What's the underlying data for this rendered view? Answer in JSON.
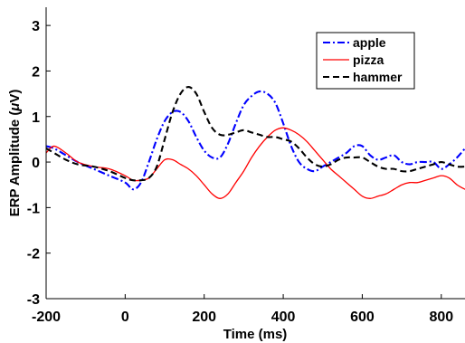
{
  "chart_data": {
    "type": "line",
    "title": "",
    "xlabel": "Time (ms)",
    "ylabel_main": "ERP Amplitude (",
    "ylabel_mu": "μ",
    "ylabel_tail": "V)",
    "xlim": [
      -200,
      860
    ],
    "ylim": [
      -3,
      3.4
    ],
    "xticks": [
      -200,
      0,
      200,
      400,
      600,
      800
    ],
    "yticks": [
      -3,
      -2,
      -1,
      0,
      1,
      2,
      3
    ],
    "grid": false,
    "legend_position": "top-right",
    "series": [
      {
        "name": "apple",
        "color": "#0000ff",
        "dash": "dashdot",
        "x": [
          -200,
          -180,
          -150,
          -120,
          -80,
          -40,
          0,
          20,
          40,
          60,
          80,
          100,
          120,
          140,
          160,
          180,
          200,
          220,
          240,
          260,
          280,
          300,
          320,
          340,
          360,
          380,
          400,
          420,
          440,
          460,
          480,
          500,
          520,
          540,
          560,
          580,
          600,
          620,
          640,
          660,
          680,
          700,
          720,
          740,
          760,
          780,
          800,
          820,
          840,
          860
        ],
        "y": [
          0.35,
          0.3,
          0.15,
          0.0,
          -0.15,
          -0.3,
          -0.45,
          -0.6,
          -0.45,
          0.0,
          0.5,
          0.9,
          1.1,
          1.1,
          0.9,
          0.55,
          0.25,
          0.1,
          0.1,
          0.4,
          0.85,
          1.25,
          1.45,
          1.55,
          1.5,
          1.3,
          0.85,
          0.35,
          0.0,
          -0.15,
          -0.2,
          -0.1,
          0.0,
          0.1,
          0.2,
          0.35,
          0.35,
          0.15,
          0.05,
          0.1,
          0.15,
          0.0,
          -0.05,
          0.0,
          0.0,
          0.0,
          -0.15,
          -0.05,
          0.1,
          0.3
        ]
      },
      {
        "name": "pizza",
        "color": "#ff0000",
        "dash": "solid",
        "x": [
          -200,
          -180,
          -150,
          -120,
          -80,
          -40,
          0,
          20,
          40,
          60,
          80,
          100,
          120,
          140,
          160,
          180,
          200,
          220,
          240,
          260,
          280,
          300,
          320,
          340,
          360,
          380,
          400,
          420,
          440,
          460,
          480,
          500,
          520,
          540,
          560,
          580,
          600,
          620,
          640,
          660,
          680,
          700,
          720,
          740,
          760,
          780,
          800,
          820,
          840,
          860
        ],
        "y": [
          0.2,
          0.35,
          0.2,
          0.0,
          -0.1,
          -0.15,
          -0.3,
          -0.4,
          -0.4,
          -0.35,
          -0.15,
          0.05,
          0.05,
          -0.05,
          -0.15,
          -0.3,
          -0.5,
          -0.7,
          -0.8,
          -0.7,
          -0.45,
          -0.2,
          0.1,
          0.35,
          0.55,
          0.7,
          0.75,
          0.7,
          0.6,
          0.45,
          0.25,
          0.05,
          -0.15,
          -0.3,
          -0.45,
          -0.6,
          -0.75,
          -0.8,
          -0.75,
          -0.7,
          -0.6,
          -0.5,
          -0.45,
          -0.45,
          -0.4,
          -0.35,
          -0.3,
          -0.35,
          -0.5,
          -0.6
        ]
      },
      {
        "name": "hammer",
        "color": "#000000",
        "dash": "dashed",
        "x": [
          -200,
          -180,
          -150,
          -120,
          -80,
          -40,
          0,
          20,
          40,
          60,
          80,
          100,
          120,
          140,
          160,
          180,
          200,
          220,
          240,
          260,
          280,
          300,
          320,
          340,
          360,
          380,
          400,
          420,
          440,
          460,
          480,
          500,
          520,
          540,
          560,
          580,
          600,
          620,
          640,
          660,
          680,
          700,
          720,
          740,
          760,
          780,
          800,
          820,
          840,
          860
        ],
        "y": [
          0.3,
          0.2,
          0.05,
          -0.05,
          -0.1,
          -0.2,
          -0.35,
          -0.4,
          -0.4,
          -0.35,
          -0.1,
          0.5,
          1.1,
          1.5,
          1.65,
          1.5,
          1.1,
          0.75,
          0.6,
          0.6,
          0.65,
          0.7,
          0.65,
          0.6,
          0.55,
          0.55,
          0.5,
          0.45,
          0.3,
          0.1,
          -0.05,
          -0.1,
          -0.05,
          0.05,
          0.1,
          0.1,
          0.1,
          0.0,
          -0.1,
          -0.15,
          -0.15,
          -0.2,
          -0.2,
          -0.15,
          -0.1,
          -0.05,
          0.0,
          -0.05,
          -0.1,
          -0.1
        ]
      }
    ]
  }
}
